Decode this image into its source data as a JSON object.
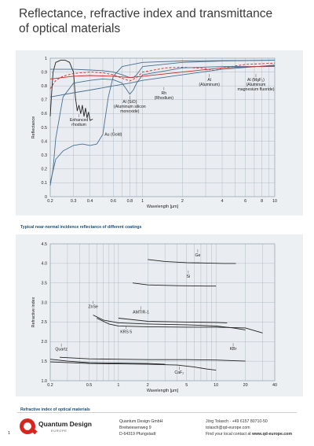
{
  "title": {
    "line1": "Reflectance, refractive index and transmittance",
    "line2": "of optical materials"
  },
  "colors": {
    "blue_curve": "#4a6f8f",
    "red_curve": "#cc2a2a",
    "black_curve": "#222222",
    "panel_bg": "#edf0f3",
    "grid": "#9aa8b6",
    "caption": "#1f4e79",
    "brand_red": "#d7261e"
  },
  "chart_data": [
    {
      "type": "line",
      "caption": "Typical near-normal incidence reflectance of different coatings",
      "xlabel": "Wavelength [µm]",
      "ylabel": "Reflectance",
      "xscale": "log",
      "xlim": [
        0.2,
        10
      ],
      "ylim": [
        0,
        1.0
      ],
      "xticks": [
        0.2,
        0.3,
        0.4,
        0.6,
        0.8,
        1,
        2,
        4,
        6,
        8,
        10
      ],
      "yticks": [
        0,
        0.1,
        0.2,
        0.3,
        0.4,
        0.5,
        0.6,
        0.7,
        0.8,
        0.9,
        1.0
      ],
      "labels": [
        {
          "id": "al",
          "lines": [
            "Al",
            "(Aluminum)"
          ],
          "x": 3.2,
          "y": 0.835
        },
        {
          "id": "almgf2",
          "lines": [
            "Al (MgF₂)",
            "(Aluminum",
            "magnesium fluoride)"
          ],
          "x": 7.2,
          "y": 0.835
        },
        {
          "id": "rh",
          "lines": [
            "Rh",
            "(Rhodium)"
          ],
          "x": 1.45,
          "y": 0.74
        },
        {
          "id": "alsio",
          "lines": [
            "Al (SiO)",
            "(Aluminum silicon",
            "monoxide)"
          ],
          "x": 0.8,
          "y": 0.675
        },
        {
          "id": "enhrh",
          "lines": [
            "Enhanced",
            "rhodium"
          ],
          "x": 0.33,
          "y": 0.545
        },
        {
          "id": "au",
          "lines": [
            "Au (Gold)"
          ],
          "x": 0.6,
          "y": 0.44
        }
      ],
      "series": [
        {
          "id": "enh_rh",
          "color": "black",
          "dash": false,
          "points": [
            [
              0.2,
              0.58
            ],
            [
              0.205,
              0.75
            ],
            [
              0.21,
              0.9
            ],
            [
              0.22,
              0.97
            ],
            [
              0.24,
              0.985
            ],
            [
              0.26,
              0.985
            ],
            [
              0.28,
              0.97
            ],
            [
              0.3,
              0.9
            ],
            [
              0.31,
              0.72
            ],
            [
              0.32,
              0.62
            ],
            [
              0.33,
              0.66
            ],
            [
              0.34,
              0.6
            ],
            [
              0.35,
              0.66
            ],
            [
              0.36,
              0.58
            ],
            [
              0.37,
              0.64
            ],
            [
              0.38,
              0.57
            ],
            [
              0.39,
              0.61
            ],
            [
              0.4,
              0.55
            ],
            [
              0.42,
              0.56
            ]
          ]
        },
        {
          "id": "au",
          "color": "blue",
          "dash": false,
          "points": [
            [
              0.2,
              0.1
            ],
            [
              0.22,
              0.27
            ],
            [
              0.25,
              0.33
            ],
            [
              0.3,
              0.37
            ],
            [
              0.35,
              0.38
            ],
            [
              0.4,
              0.37
            ],
            [
              0.45,
              0.38
            ],
            [
              0.5,
              0.45
            ],
            [
              0.55,
              0.72
            ],
            [
              0.6,
              0.87
            ],
            [
              0.7,
              0.94
            ],
            [
              1,
              0.97
            ],
            [
              2,
              0.98
            ],
            [
              10,
              0.985
            ]
          ]
        },
        {
          "id": "al",
          "color": "blue",
          "dash": false,
          "points": [
            [
              0.2,
              0.92
            ],
            [
              0.3,
              0.92
            ],
            [
              0.4,
              0.915
            ],
            [
              0.5,
              0.91
            ],
            [
              0.6,
              0.9
            ],
            [
              0.7,
              0.88
            ],
            [
              0.8,
              0.86
            ],
            [
              0.85,
              0.86
            ],
            [
              0.9,
              0.88
            ],
            [
              1,
              0.94
            ],
            [
              2,
              0.97
            ],
            [
              4,
              0.98
            ],
            [
              10,
              0.985
            ]
          ]
        },
        {
          "id": "al_mgf2",
          "color": "red",
          "dash": true,
          "points": [
            [
              0.2,
              0.78
            ],
            [
              0.22,
              0.84
            ],
            [
              0.25,
              0.87
            ],
            [
              0.3,
              0.89
            ],
            [
              0.4,
              0.9
            ],
            [
              0.5,
              0.895
            ],
            [
              0.6,
              0.88
            ],
            [
              0.7,
              0.855
            ],
            [
              0.8,
              0.835
            ],
            [
              0.9,
              0.86
            ],
            [
              1,
              0.9
            ],
            [
              1.5,
              0.93
            ],
            [
              2,
              0.935
            ],
            [
              3,
              0.925
            ],
            [
              3.5,
              0.91
            ],
            [
              4,
              0.93
            ],
            [
              6,
              0.955
            ],
            [
              10,
              0.965
            ]
          ]
        },
        {
          "id": "al_sio",
          "color": "blue",
          "dash": false,
          "points": [
            [
              0.2,
              0.08
            ],
            [
              0.21,
              0.2
            ],
            [
              0.22,
              0.42
            ],
            [
              0.25,
              0.72
            ],
            [
              0.3,
              0.82
            ],
            [
              0.4,
              0.84
            ],
            [
              0.5,
              0.85
            ],
            [
              0.6,
              0.845
            ],
            [
              0.7,
              0.82
            ],
            [
              0.75,
              0.78
            ],
            [
              0.8,
              0.74
            ],
            [
              0.85,
              0.77
            ],
            [
              0.9,
              0.82
            ],
            [
              1,
              0.88
            ],
            [
              2,
              0.93
            ],
            [
              4,
              0.94
            ],
            [
              10,
              0.94
            ]
          ]
        },
        {
          "id": "rh",
          "color": "blue",
          "dash": false,
          "points": [
            [
              0.2,
              0.72
            ],
            [
              0.3,
              0.75
            ],
            [
              0.4,
              0.77
            ],
            [
              0.6,
              0.8
            ],
            [
              0.8,
              0.82
            ],
            [
              1,
              0.84
            ],
            [
              2,
              0.88
            ],
            [
              4,
              0.92
            ],
            [
              10,
              0.95
            ]
          ]
        },
        {
          "id": "red_low",
          "color": "red",
          "dash": false,
          "points": [
            [
              0.2,
              0.85
            ],
            [
              0.3,
              0.87
            ],
            [
              0.4,
              0.875
            ],
            [
              0.6,
              0.87
            ],
            [
              0.8,
              0.86
            ],
            [
              1,
              0.87
            ],
            [
              2,
              0.9
            ],
            [
              4,
              0.93
            ],
            [
              10,
              0.945
            ]
          ]
        }
      ]
    },
    {
      "type": "line",
      "caption": "Refractive index of optical materials",
      "xlabel": "Wavelength [µm]",
      "ylabel": "Refractive index",
      "xscale": "log",
      "xlim": [
        0.2,
        40
      ],
      "ylim": [
        1.0,
        4.5
      ],
      "xticks": [
        0.2,
        0.5,
        1,
        2,
        5,
        10,
        20,
        40
      ],
      "xticklabels": [
        "0.2",
        "0.5",
        "1",
        "2",
        "5",
        "10",
        "20",
        "40"
      ],
      "yticks": [
        1.0,
        1.5,
        2.0,
        2.5,
        3.0,
        3.5,
        4.0,
        4.5
      ],
      "yticklabels": [
        "1.0",
        "1.5",
        "2.0",
        "2.5",
        "3.0",
        "3.5",
        "4.0",
        "4.5"
      ],
      "labels": [
        {
          "id": "ge",
          "text": "Ge",
          "x": 6.5,
          "y": 4.18
        },
        {
          "id": "si",
          "text": "Si",
          "x": 5.2,
          "y": 3.64
        },
        {
          "id": "amtir",
          "text": "AMTIR-1",
          "x": 1.7,
          "y": 2.72
        },
        {
          "id": "znse",
          "text": "ZnSe",
          "x": 0.55,
          "y": 2.86
        },
        {
          "id": "krs5",
          "text": "KRS 5",
          "x": 1.2,
          "y": 2.22
        },
        {
          "id": "kbr",
          "text": "KBr",
          "x": 15,
          "y": 1.78
        },
        {
          "id": "quartz",
          "text": "Quartz",
          "x": 0.26,
          "y": 1.77
        },
        {
          "id": "caf2",
          "text": "CaF₂",
          "x": 4.2,
          "y": 1.18
        }
      ],
      "series": [
        {
          "id": "ge",
          "points": [
            [
              2,
              4.1
            ],
            [
              3,
              4.05
            ],
            [
              5,
              4.02
            ],
            [
              8,
              4.01
            ],
            [
              12,
              4.0
            ],
            [
              16,
              4.0
            ]
          ]
        },
        {
          "id": "si",
          "points": [
            [
              1.4,
              3.5
            ],
            [
              2,
              3.45
            ],
            [
              4,
              3.43
            ],
            [
              8,
              3.42
            ],
            [
              10,
              3.42
            ]
          ]
        },
        {
          "id": "amtir",
          "points": [
            [
              1,
              2.6
            ],
            [
              2,
              2.52
            ],
            [
              5,
              2.5
            ],
            [
              10,
              2.49
            ],
            [
              13,
              2.48
            ]
          ]
        },
        {
          "id": "znse",
          "points": [
            [
              0.55,
              2.68
            ],
            [
              0.7,
              2.55
            ],
            [
              1,
              2.48
            ],
            [
              2,
              2.45
            ],
            [
              5,
              2.43
            ],
            [
              10,
              2.4
            ],
            [
              15,
              2.35
            ],
            [
              20,
              2.3
            ]
          ]
        },
        {
          "id": "krs5",
          "points": [
            [
              0.6,
              2.6
            ],
            [
              0.8,
              2.45
            ],
            [
              1,
              2.4
            ],
            [
              2,
              2.38
            ],
            [
              5,
              2.37
            ],
            [
              10,
              2.37
            ],
            [
              20,
              2.35
            ],
            [
              30,
              2.22
            ]
          ]
        },
        {
          "id": "kbr",
          "points": [
            [
              0.25,
              1.6
            ],
            [
              0.5,
              1.56
            ],
            [
              1,
              1.55
            ],
            [
              2,
              1.54
            ],
            [
              5,
              1.54
            ],
            [
              10,
              1.53
            ],
            [
              20,
              1.5
            ]
          ]
        },
        {
          "id": "quartz",
          "points": [
            [
              0.2,
              1.55
            ],
            [
              0.3,
              1.5
            ],
            [
              0.5,
              1.46
            ],
            [
              1,
              1.45
            ],
            [
              2,
              1.44
            ],
            [
              3,
              1.42
            ]
          ]
        },
        {
          "id": "caf2",
          "points": [
            [
              0.2,
              1.48
            ],
            [
              0.5,
              1.44
            ],
            [
              1,
              1.43
            ],
            [
              2,
              1.42
            ],
            [
              4,
              1.4
            ],
            [
              6,
              1.35
            ],
            [
              8,
              1.3
            ],
            [
              10,
              1.27
            ]
          ]
        }
      ]
    }
  ],
  "footer": {
    "page": "1",
    "logo_main": "Quantum Design",
    "logo_sub": "EUROPE",
    "address": [
      "Quantum Design GmbH",
      "Breitwiesenweg 9",
      "D-64319 Pfungstadt"
    ],
    "contact": [
      "Jörg Tolasch · +49 6157 80710-50",
      "tolasch@qd-europe.com"
    ],
    "contact_prefix": "Find your local contact at ",
    "contact_link": "www.qd-europe.com"
  }
}
